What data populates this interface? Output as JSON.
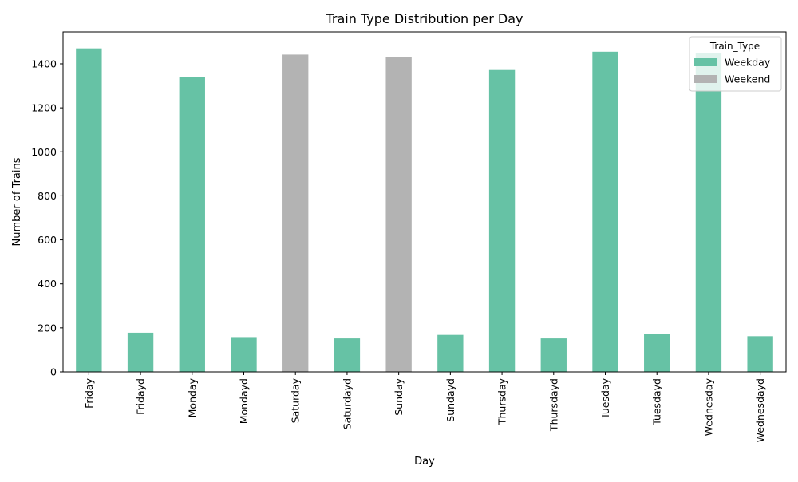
{
  "chart_data": {
    "type": "bar",
    "title": "Train Type Distribution per Day",
    "xlabel": "Day",
    "ylabel": "Number of Trains",
    "categories": [
      "Friday",
      "Fridayd",
      "Monday",
      "Mondayd",
      "Saturday",
      "Saturdayd",
      "Sunday",
      "Sundayd",
      "Thursday",
      "Thursdayd",
      "Tuesday",
      "Tuesdayd",
      "Wednesday",
      "Wednesdayd"
    ],
    "series": [
      {
        "name": "Weekday",
        "color": "#66c2a5",
        "values": [
          1470,
          178,
          1340,
          158,
          0,
          152,
          0,
          168,
          1372,
          152,
          1455,
          172,
          1447,
          162
        ]
      },
      {
        "name": "Weekend",
        "color": "#b3b3b3",
        "values": [
          0,
          0,
          0,
          0,
          1442,
          0,
          1432,
          0,
          0,
          0,
          0,
          0,
          0,
          0
        ]
      }
    ],
    "stacked": true,
    "ylim": [
      0,
      1545
    ],
    "yticks": [
      0,
      200,
      400,
      600,
      800,
      1000,
      1200,
      1400
    ],
    "grid": false,
    "legend": {
      "title": "Train_Type",
      "position": "top-right"
    }
  }
}
